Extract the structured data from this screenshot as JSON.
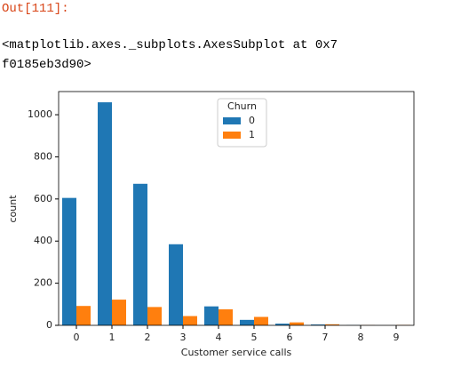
{
  "output": {
    "prompt": "Out[111]:",
    "lines": [
      "<matplotlib.axes._subplots.AxesSubplot at 0x7",
      "f0185eb3d90>"
    ]
  },
  "chart_data": {
    "type": "bar",
    "x_label": "Customer service calls",
    "y_label": "count",
    "categories": [
      "0",
      "1",
      "2",
      "3",
      "4",
      "5",
      "6",
      "7",
      "8",
      "9"
    ],
    "series": [
      {
        "name": "0",
        "color": "#1f77b4",
        "values": [
          605,
          1059,
          672,
          385,
          90,
          26,
          8,
          4,
          1,
          0
        ]
      },
      {
        "name": "1",
        "color": "#ff7f0e",
        "values": [
          92,
          122,
          87,
          44,
          76,
          40,
          14,
          5,
          1,
          2
        ]
      }
    ],
    "legend_title": "Churn",
    "legend": "upper center",
    "ylim": [
      0,
      1110
    ],
    "yticks": [
      0,
      200,
      400,
      600,
      800,
      1000
    ]
  }
}
